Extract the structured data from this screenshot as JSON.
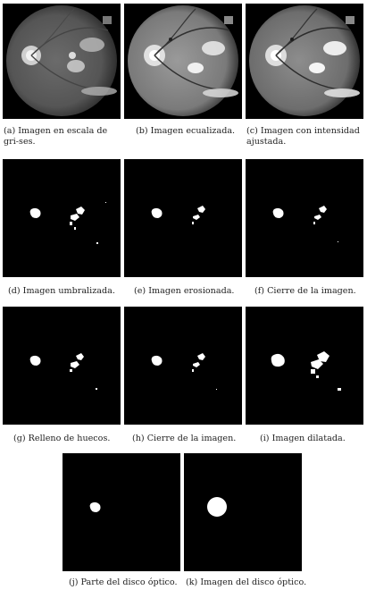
{
  "figures": [
    {
      "id": "a",
      "caption": "(a) Imagen en escala de gri-ses.",
      "kind": "grayscale"
    },
    {
      "id": "b",
      "caption": "(b) Imagen ecualizada.",
      "kind": "equalized"
    },
    {
      "id": "c",
      "caption": "(c) Imagen con intensidad ajustada.",
      "kind": "adjusted"
    },
    {
      "id": "d",
      "caption": "(d) Imagen umbralizada.",
      "kind": "binary"
    },
    {
      "id": "e",
      "caption": "(e) Imagen erosionada.",
      "kind": "binary"
    },
    {
      "id": "f",
      "caption": "(f) Cierre de la imagen.",
      "kind": "binary"
    },
    {
      "id": "g",
      "caption": "(g) Relleno de huecos.",
      "kind": "binary"
    },
    {
      "id": "h",
      "caption": "(h) Cierre de la imagen.",
      "kind": "binary"
    },
    {
      "id": "i",
      "caption": "(i) Imagen dilatada.",
      "kind": "binary"
    },
    {
      "id": "j",
      "caption": "(j) Parte del disco óptico.",
      "kind": "binary"
    },
    {
      "id": "k",
      "caption": "(k) Imagen del disco óptico.",
      "kind": "binary"
    }
  ]
}
